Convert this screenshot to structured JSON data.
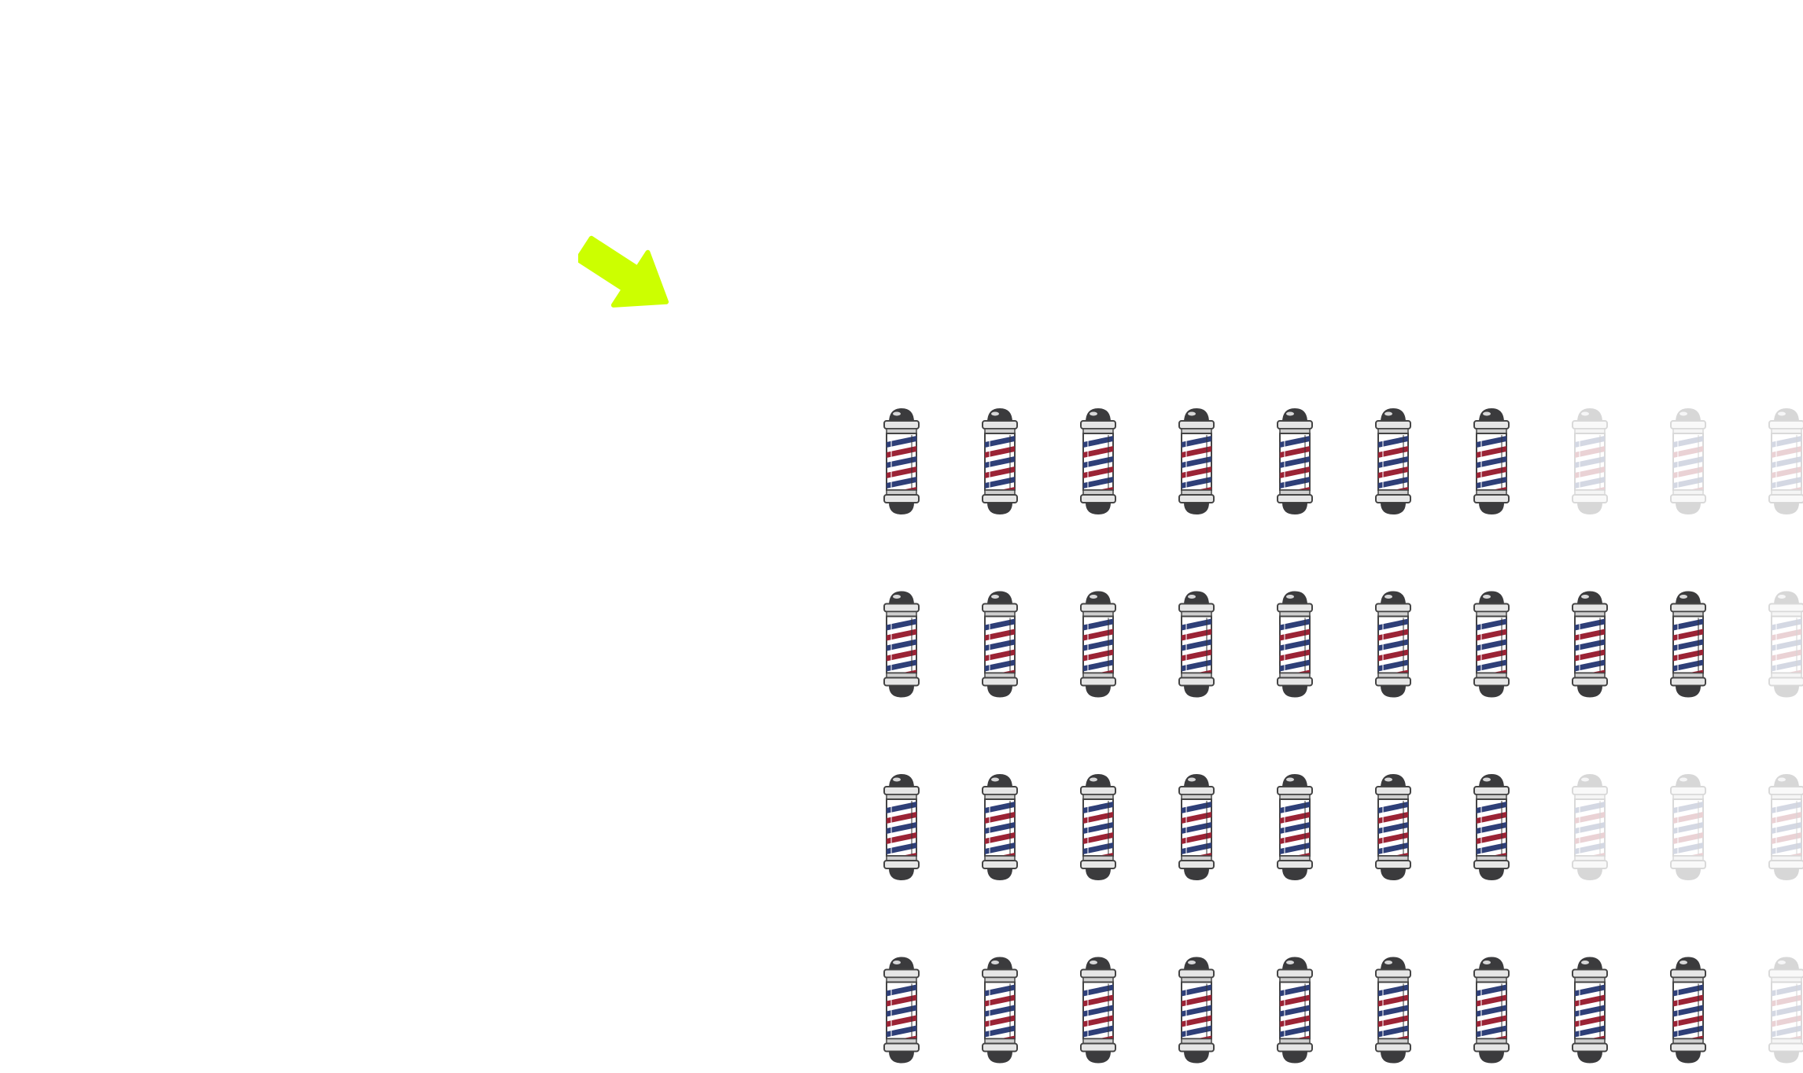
{
  "colors": {
    "arrow": "#ccff00",
    "stripe_red": "#9b2335",
    "stripe_blue": "#2e3f78",
    "metal_dark": "#3b3b3d",
    "metal_light": "#e6e6e6"
  },
  "icons": {
    "unit": "barber-pole-icon",
    "pointer": "arrow-down-right-icon"
  },
  "chart_data": {
    "type": "pictogram",
    "icon": "barber-pole",
    "units_per_row": 10,
    "rows": [
      {
        "filled": 7,
        "total": 10
      },
      {
        "filled": 9,
        "total": 10
      },
      {
        "filled": 7,
        "total": 10
      },
      {
        "filled": 9,
        "total": 10
      }
    ],
    "values": [
      7,
      9,
      7,
      9
    ]
  }
}
